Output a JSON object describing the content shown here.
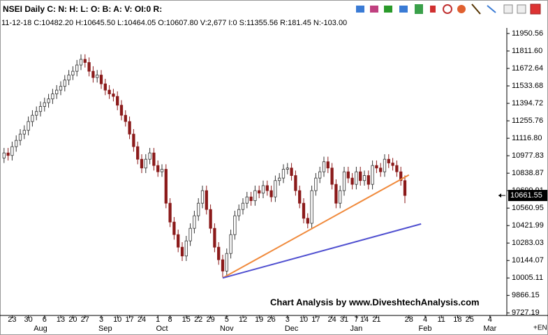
{
  "chart_data": {
    "type": "candlestick",
    "title": "NSEI Daily C: N: H: L: O: B: A: V: OI:0 R:",
    "subtitle": "11-12-18 C:10482.20 H:10645.50 L:10464.05 O:10607.80 V:2,677 I:0 S:11355.56 R:181.45 N:-103.00",
    "annotation": "Chart Analysis by www.DiveshtechAnalysis.com",
    "corner_label": "+EN",
    "up_color": "#ffffff",
    "down_color": "#8b1a1a",
    "xlim": [
      -1,
      124
    ],
    "ylim": [
      9690,
      12095
    ],
    "ohlc": [
      [
        10960,
        11040,
        10920,
        11000
      ],
      [
        11000,
        11040,
        10940,
        10980
      ],
      [
        10980,
        11090,
        10940,
        11050
      ],
      [
        11050,
        11140,
        11010,
        11100
      ],
      [
        11100,
        11190,
        11060,
        11150
      ],
      [
        11150,
        11220,
        11110,
        11180
      ],
      [
        11180,
        11290,
        11140,
        11250
      ],
      [
        11250,
        11340,
        11210,
        11300
      ],
      [
        11300,
        11370,
        11260,
        11330
      ],
      [
        11330,
        11410,
        11290,
        11370
      ],
      [
        11370,
        11440,
        11330,
        11400
      ],
      [
        11400,
        11470,
        11360,
        11430
      ],
      [
        11430,
        11510,
        11390,
        11470
      ],
      [
        11470,
        11540,
        11430,
        11500
      ],
      [
        11500,
        11570,
        11460,
        11530
      ],
      [
        11530,
        11620,
        11490,
        11580
      ],
      [
        11580,
        11660,
        11540,
        11620
      ],
      [
        11620,
        11690,
        11580,
        11650
      ],
      [
        11650,
        11740,
        11610,
        11700
      ],
      [
        11700,
        11785,
        11660,
        11745
      ],
      [
        11745,
        11785,
        11680,
        11720
      ],
      [
        11720,
        11760,
        11610,
        11650
      ],
      [
        11650,
        11690,
        11560,
        11600
      ],
      [
        11600,
        11660,
        11560,
        11620
      ],
      [
        11620,
        11660,
        11510,
        11550
      ],
      [
        11550,
        11590,
        11460,
        11500
      ],
      [
        11500,
        11540,
        11430,
        11470
      ],
      [
        11470,
        11510,
        11410,
        11450
      ],
      [
        11450,
        11490,
        11340,
        11380
      ],
      [
        11380,
        11420,
        11260,
        11300
      ],
      [
        11300,
        11340,
        11210,
        11250
      ],
      [
        11250,
        11290,
        11110,
        11150
      ],
      [
        11150,
        11190,
        11010,
        11050
      ],
      [
        11050,
        11090,
        10910,
        10950
      ],
      [
        10950,
        10990,
        10840,
        10880
      ],
      [
        10880,
        10990,
        10840,
        10950
      ],
      [
        10950,
        11040,
        10910,
        11000
      ],
      [
        11000,
        11040,
        10860,
        10900
      ],
      [
        10900,
        10940,
        10810,
        10850
      ],
      [
        10850,
        10910,
        10810,
        10870
      ],
      [
        10870,
        10910,
        10560,
        10600
      ],
      [
        10600,
        10640,
        10410,
        10450
      ],
      [
        10450,
        10490,
        10310,
        10350
      ],
      [
        10350,
        10390,
        10210,
        10250
      ],
      [
        10250,
        10290,
        10140,
        10180
      ],
      [
        10180,
        10340,
        10140,
        10300
      ],
      [
        10300,
        10440,
        10260,
        10400
      ],
      [
        10400,
        10540,
        10360,
        10500
      ],
      [
        10500,
        10640,
        10460,
        10600
      ],
      [
        10600,
        10740,
        10560,
        10700
      ],
      [
        10700,
        10740,
        10510,
        10550
      ],
      [
        10550,
        10590,
        10360,
        10400
      ],
      [
        10400,
        10440,
        10210,
        10250
      ],
      [
        10250,
        10290,
        10110,
        10150
      ],
      [
        10150,
        10190,
        10010,
        10060
      ],
      [
        10060,
        10240,
        10020,
        10200
      ],
      [
        10200,
        10390,
        10160,
        10350
      ],
      [
        10350,
        10540,
        10310,
        10500
      ],
      [
        10500,
        10590,
        10460,
        10550
      ],
      [
        10550,
        10640,
        10510,
        10600
      ],
      [
        10600,
        10690,
        10560,
        10650
      ],
      [
        10650,
        10690,
        10580,
        10620
      ],
      [
        10620,
        10740,
        10580,
        10700
      ],
      [
        10700,
        10740,
        10640,
        10680
      ],
      [
        10680,
        10780,
        10640,
        10740
      ],
      [
        10740,
        10780,
        10660,
        10700
      ],
      [
        10700,
        10740,
        10610,
        10650
      ],
      [
        10650,
        10820,
        10610,
        10780
      ],
      [
        10780,
        10840,
        10740,
        10800
      ],
      [
        10800,
        10910,
        10760,
        10870
      ],
      [
        10870,
        10920,
        10830,
        10880
      ],
      [
        10880,
        10920,
        10780,
        10820
      ],
      [
        10820,
        10860,
        10660,
        10700
      ],
      [
        10700,
        10740,
        10560,
        10600
      ],
      [
        10600,
        10640,
        10440,
        10480
      ],
      [
        10480,
        10520,
        10400,
        10440
      ],
      [
        10440,
        10740,
        10400,
        10700
      ],
      [
        10700,
        10840,
        10660,
        10800
      ],
      [
        10800,
        10890,
        10760,
        10850
      ],
      [
        10850,
        10970,
        10810,
        10930
      ],
      [
        10930,
        10970,
        10840,
        10880
      ],
      [
        10880,
        10920,
        10710,
        10750
      ],
      [
        10750,
        10790,
        10560,
        10600
      ],
      [
        10600,
        10740,
        10560,
        10700
      ],
      [
        10700,
        10890,
        10660,
        10850
      ],
      [
        10850,
        10890,
        10760,
        10800
      ],
      [
        10800,
        10840,
        10710,
        10750
      ],
      [
        10750,
        10890,
        10710,
        10850
      ],
      [
        10850,
        10890,
        10740,
        10780
      ],
      [
        10780,
        10860,
        10740,
        10820
      ],
      [
        10820,
        10860,
        10710,
        10750
      ],
      [
        10750,
        10940,
        10710,
        10900
      ],
      [
        10900,
        10940,
        10840,
        10880
      ],
      [
        10880,
        10920,
        10810,
        10850
      ],
      [
        10850,
        10990,
        10810,
        10950
      ],
      [
        10950,
        10990,
        10880,
        10920
      ],
      [
        10920,
        10960,
        10860,
        10900
      ],
      [
        10900,
        10940,
        10810,
        10850
      ],
      [
        10850,
        10890,
        10740,
        10780
      ],
      [
        10780,
        10820,
        10600,
        10661.55
      ]
    ],
    "trendlines": [
      {
        "color": "#f08a3c",
        "start": [
          54,
          10005
        ],
        "end": [
          100,
          10825
        ]
      },
      {
        "color": "#5050d0",
        "start": [
          54,
          10005
        ],
        "end": [
          103,
          10435
        ]
      }
    ],
    "yticks": [
      {
        "value": 11950.56,
        "label": "11950.56"
      },
      {
        "value": 11811.6,
        "label": "11811.60"
      },
      {
        "value": 11672.64,
        "label": "11672.64"
      },
      {
        "value": 11533.68,
        "label": "11533.68"
      },
      {
        "value": 11394.72,
        "label": "11394.72"
      },
      {
        "value": 11255.76,
        "label": "11255.76"
      },
      {
        "value": 11116.8,
        "label": "11116.80"
      },
      {
        "value": 10977.83,
        "label": "10977.83"
      },
      {
        "value": 10838.87,
        "label": "10838.87"
      },
      {
        "value": 10699.91,
        "label": "10699.91"
      },
      {
        "value": 10560.95,
        "label": "10560.95"
      },
      {
        "value": 10421.99,
        "label": "10421.99"
      },
      {
        "value": 10283.03,
        "label": "10283.03"
      },
      {
        "value": 10144.07,
        "label": "10144.07"
      },
      {
        "value": 10005.11,
        "label": "10005.11"
      },
      {
        "value": 9866.15,
        "label": "9866.15"
      },
      {
        "value": 9727.19,
        "label": "9727.19"
      }
    ],
    "xticks": [
      {
        "value": 2,
        "label": "23"
      },
      {
        "value": 6,
        "label": "30"
      },
      {
        "value": 10,
        "label": "6"
      },
      {
        "value": 14,
        "label": "13"
      },
      {
        "value": 17,
        "label": "20"
      },
      {
        "value": 20,
        "label": "27"
      },
      {
        "value": 24,
        "label": "3"
      },
      {
        "value": 28,
        "label": "10"
      },
      {
        "value": 31,
        "label": "17"
      },
      {
        "value": 34,
        "label": "24"
      },
      {
        "value": 38,
        "label": "1"
      },
      {
        "value": 41,
        "label": "8"
      },
      {
        "value": 45,
        "label": "15"
      },
      {
        "value": 48,
        "label": "22"
      },
      {
        "value": 51,
        "label": "29"
      },
      {
        "value": 55,
        "label": "5"
      },
      {
        "value": 59,
        "label": "12"
      },
      {
        "value": 63,
        "label": "19"
      },
      {
        "value": 66,
        "label": "26"
      },
      {
        "value": 70,
        "label": "3"
      },
      {
        "value": 74,
        "label": "10"
      },
      {
        "value": 77,
        "label": "17"
      },
      {
        "value": 81,
        "label": "24"
      },
      {
        "value": 84,
        "label": "31"
      },
      {
        "value": 87,
        "label": "7"
      },
      {
        "value": 89,
        "label": "14"
      },
      {
        "value": 92,
        "label": "21"
      },
      {
        "value": 100,
        "label": "28"
      },
      {
        "value": 104,
        "label": "4"
      },
      {
        "value": 108,
        "label": "11"
      },
      {
        "value": 112,
        "label": "18"
      },
      {
        "value": 115,
        "label": "25"
      },
      {
        "value": 120,
        "label": "4"
      }
    ],
    "month_ticks": [
      {
        "value": 9,
        "label": "Aug"
      },
      {
        "value": 25,
        "label": "Sep"
      },
      {
        "value": 39,
        "label": "Oct"
      },
      {
        "value": 55,
        "label": "Nov"
      },
      {
        "value": 71,
        "label": "Dec"
      },
      {
        "value": 87,
        "label": "Jan"
      },
      {
        "value": 104,
        "label": "Feb"
      },
      {
        "value": 120,
        "label": "Mar"
      }
    ]
  }
}
